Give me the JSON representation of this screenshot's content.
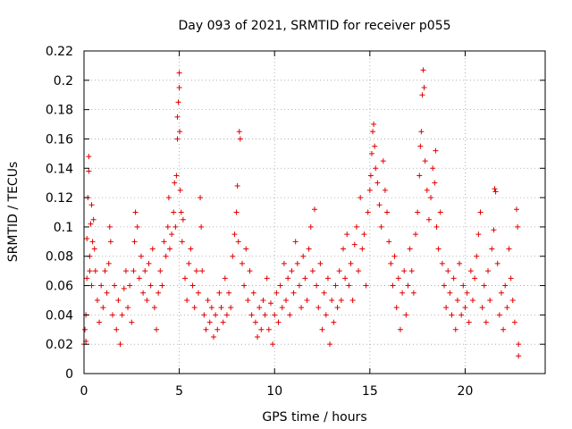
{
  "chart_data": {
    "type": "scatter",
    "title": "Day 093 of 2021, SRMTID for receiver p055",
    "xlabel": "GPS time / hours",
    "ylabel": "SRMTID / TECUs",
    "xlim": [
      0,
      24.2
    ],
    "ylim": [
      0,
      0.22
    ],
    "xticks": [
      0,
      5,
      10,
      15,
      20
    ],
    "xtick_labels": [
      "0",
      "5",
      "10",
      "15",
      "20"
    ],
    "yticks": [
      0,
      0.02,
      0.04,
      0.06,
      0.08,
      0.1,
      0.12,
      0.14,
      0.16,
      0.18,
      0.2,
      0.22
    ],
    "ytick_labels": [
      "0",
      "0.02",
      "0.04",
      "0.06",
      "0.08",
      "0.1",
      "0.12",
      "0.14",
      "0.16",
      "0.18",
      "0.2",
      "0.22"
    ],
    "grid": true,
    "marker": "+",
    "color": "#e00000",
    "series": [
      {
        "name": "p055",
        "points": [
          [
            0.0,
            0.02
          ],
          [
            0.05,
            0.03
          ],
          [
            0.1,
            0.04
          ],
          [
            0.1,
            0.022
          ],
          [
            0.15,
            0.065
          ],
          [
            0.15,
            0.092
          ],
          [
            0.2,
            0.12
          ],
          [
            0.25,
            0.148
          ],
          [
            0.25,
            0.138
          ],
          [
            0.3,
            0.08
          ],
          [
            0.3,
            0.07
          ],
          [
            0.35,
            0.102
          ],
          [
            0.4,
            0.115
          ],
          [
            0.4,
            0.06
          ],
          [
            0.45,
            0.09
          ],
          [
            0.5,
            0.105
          ],
          [
            0.55,
            0.085
          ],
          [
            0.6,
            0.07
          ],
          [
            0.7,
            0.05
          ],
          [
            0.8,
            0.035
          ],
          [
            0.9,
            0.06
          ],
          [
            1.0,
            0.045
          ],
          [
            1.1,
            0.07
          ],
          [
            1.2,
            0.055
          ],
          [
            1.3,
            0.075
          ],
          [
            1.35,
            0.1
          ],
          [
            1.4,
            0.09
          ],
          [
            1.5,
            0.04
          ],
          [
            1.6,
            0.06
          ],
          [
            1.7,
            0.03
          ],
          [
            1.8,
            0.05
          ],
          [
            1.9,
            0.02
          ],
          [
            2.0,
            0.04
          ],
          [
            2.1,
            0.058
          ],
          [
            2.2,
            0.07
          ],
          [
            2.3,
            0.045
          ],
          [
            2.4,
            0.06
          ],
          [
            2.5,
            0.035
          ],
          [
            2.6,
            0.07
          ],
          [
            2.65,
            0.09
          ],
          [
            2.7,
            0.11
          ],
          [
            2.8,
            0.1
          ],
          [
            2.9,
            0.065
          ],
          [
            3.0,
            0.08
          ],
          [
            3.1,
            0.055
          ],
          [
            3.2,
            0.07
          ],
          [
            3.3,
            0.05
          ],
          [
            3.4,
            0.075
          ],
          [
            3.5,
            0.06
          ],
          [
            3.6,
            0.085
          ],
          [
            3.7,
            0.045
          ],
          [
            3.8,
            0.03
          ],
          [
            3.9,
            0.055
          ],
          [
            4.0,
            0.07
          ],
          [
            4.1,
            0.06
          ],
          [
            4.2,
            0.09
          ],
          [
            4.3,
            0.08
          ],
          [
            4.4,
            0.1
          ],
          [
            4.45,
            0.12
          ],
          [
            4.5,
            0.085
          ],
          [
            4.6,
            0.095
          ],
          [
            4.7,
            0.11
          ],
          [
            4.75,
            0.13
          ],
          [
            4.8,
            0.1
          ],
          [
            4.85,
            0.135
          ],
          [
            4.9,
            0.16
          ],
          [
            4.9,
            0.175
          ],
          [
            4.95,
            0.185
          ],
          [
            5.0,
            0.205
          ],
          [
            5.0,
            0.195
          ],
          [
            5.02,
            0.165
          ],
          [
            5.05,
            0.125
          ],
          [
            5.1,
            0.11
          ],
          [
            5.15,
            0.09
          ],
          [
            5.2,
            0.105
          ],
          [
            5.3,
            0.065
          ],
          [
            5.4,
            0.05
          ],
          [
            5.5,
            0.075
          ],
          [
            5.6,
            0.085
          ],
          [
            5.7,
            0.06
          ],
          [
            5.8,
            0.045
          ],
          [
            5.9,
            0.07
          ],
          [
            6.0,
            0.055
          ],
          [
            6.1,
            0.12
          ],
          [
            6.15,
            0.1
          ],
          [
            6.2,
            0.07
          ],
          [
            6.3,
            0.04
          ],
          [
            6.4,
            0.03
          ],
          [
            6.5,
            0.05
          ],
          [
            6.6,
            0.035
          ],
          [
            6.7,
            0.045
          ],
          [
            6.8,
            0.025
          ],
          [
            6.9,
            0.04
          ],
          [
            7.0,
            0.03
          ],
          [
            7.1,
            0.055
          ],
          [
            7.2,
            0.045
          ],
          [
            7.3,
            0.035
          ],
          [
            7.4,
            0.065
          ],
          [
            7.5,
            0.04
          ],
          [
            7.6,
            0.055
          ],
          [
            7.7,
            0.045
          ],
          [
            7.8,
            0.08
          ],
          [
            7.9,
            0.095
          ],
          [
            8.0,
            0.11
          ],
          [
            8.05,
            0.128
          ],
          [
            8.1,
            0.09
          ],
          [
            8.15,
            0.165
          ],
          [
            8.2,
            0.16
          ],
          [
            8.3,
            0.075
          ],
          [
            8.4,
            0.06
          ],
          [
            8.5,
            0.085
          ],
          [
            8.6,
            0.05
          ],
          [
            8.7,
            0.07
          ],
          [
            8.8,
            0.04
          ],
          [
            8.9,
            0.055
          ],
          [
            9.0,
            0.035
          ],
          [
            9.1,
            0.025
          ],
          [
            9.2,
            0.045
          ],
          [
            9.3,
            0.03
          ],
          [
            9.4,
            0.05
          ],
          [
            9.5,
            0.04
          ],
          [
            9.6,
            0.065
          ],
          [
            9.7,
            0.03
          ],
          [
            9.8,
            0.048
          ],
          [
            9.9,
            0.02
          ],
          [
            10.0,
            0.04
          ],
          [
            10.1,
            0.055
          ],
          [
            10.2,
            0.035
          ],
          [
            10.3,
            0.06
          ],
          [
            10.4,
            0.045
          ],
          [
            10.5,
            0.075
          ],
          [
            10.6,
            0.05
          ],
          [
            10.7,
            0.065
          ],
          [
            10.8,
            0.04
          ],
          [
            10.9,
            0.07
          ],
          [
            11.0,
            0.055
          ],
          [
            11.1,
            0.09
          ],
          [
            11.2,
            0.075
          ],
          [
            11.3,
            0.06
          ],
          [
            11.4,
            0.045
          ],
          [
            11.5,
            0.08
          ],
          [
            11.6,
            0.065
          ],
          [
            11.7,
            0.05
          ],
          [
            11.8,
            0.085
          ],
          [
            11.9,
            0.1
          ],
          [
            12.0,
            0.07
          ],
          [
            12.1,
            0.112
          ],
          [
            12.2,
            0.06
          ],
          [
            12.3,
            0.045
          ],
          [
            12.4,
            0.075
          ],
          [
            12.5,
            0.03
          ],
          [
            12.6,
            0.055
          ],
          [
            12.7,
            0.04
          ],
          [
            12.8,
            0.065
          ],
          [
            12.9,
            0.02
          ],
          [
            13.0,
            0.05
          ],
          [
            13.1,
            0.035
          ],
          [
            13.2,
            0.06
          ],
          [
            13.3,
            0.045
          ],
          [
            13.4,
            0.07
          ],
          [
            13.5,
            0.05
          ],
          [
            13.6,
            0.085
          ],
          [
            13.7,
            0.065
          ],
          [
            13.8,
            0.095
          ],
          [
            13.9,
            0.06
          ],
          [
            14.0,
            0.075
          ],
          [
            14.1,
            0.05
          ],
          [
            14.2,
            0.088
          ],
          [
            14.3,
            0.1
          ],
          [
            14.4,
            0.07
          ],
          [
            14.5,
            0.12
          ],
          [
            14.6,
            0.085
          ],
          [
            14.7,
            0.095
          ],
          [
            14.8,
            0.06
          ],
          [
            14.9,
            0.11
          ],
          [
            15.0,
            0.125
          ],
          [
            15.05,
            0.135
          ],
          [
            15.1,
            0.15
          ],
          [
            15.15,
            0.165
          ],
          [
            15.2,
            0.17
          ],
          [
            15.25,
            0.155
          ],
          [
            15.3,
            0.14
          ],
          [
            15.4,
            0.13
          ],
          [
            15.5,
            0.115
          ],
          [
            15.6,
            0.1
          ],
          [
            15.7,
            0.145
          ],
          [
            15.8,
            0.125
          ],
          [
            15.9,
            0.11
          ],
          [
            16.0,
            0.09
          ],
          [
            16.1,
            0.075
          ],
          [
            16.2,
            0.06
          ],
          [
            16.3,
            0.08
          ],
          [
            16.4,
            0.045
          ],
          [
            16.5,
            0.065
          ],
          [
            16.6,
            0.03
          ],
          [
            16.7,
            0.055
          ],
          [
            16.8,
            0.07
          ],
          [
            16.9,
            0.04
          ],
          [
            17.0,
            0.06
          ],
          [
            17.1,
            0.085
          ],
          [
            17.2,
            0.07
          ],
          [
            17.3,
            0.055
          ],
          [
            17.4,
            0.095
          ],
          [
            17.5,
            0.11
          ],
          [
            17.6,
            0.135
          ],
          [
            17.65,
            0.155
          ],
          [
            17.7,
            0.165
          ],
          [
            17.75,
            0.19
          ],
          [
            17.8,
            0.207
          ],
          [
            17.85,
            0.195
          ],
          [
            17.9,
            0.145
          ],
          [
            18.0,
            0.125
          ],
          [
            18.1,
            0.105
          ],
          [
            18.2,
            0.12
          ],
          [
            18.3,
            0.14
          ],
          [
            18.4,
            0.13
          ],
          [
            18.45,
            0.152
          ],
          [
            18.5,
            0.1
          ],
          [
            18.6,
            0.085
          ],
          [
            18.7,
            0.11
          ],
          [
            18.8,
            0.075
          ],
          [
            18.9,
            0.06
          ],
          [
            19.0,
            0.045
          ],
          [
            19.1,
            0.07
          ],
          [
            19.2,
            0.055
          ],
          [
            19.3,
            0.04
          ],
          [
            19.4,
            0.065
          ],
          [
            19.5,
            0.03
          ],
          [
            19.6,
            0.05
          ],
          [
            19.7,
            0.075
          ],
          [
            19.8,
            0.04
          ],
          [
            19.9,
            0.06
          ],
          [
            20.0,
            0.045
          ],
          [
            20.1,
            0.055
          ],
          [
            20.2,
            0.035
          ],
          [
            20.3,
            0.07
          ],
          [
            20.4,
            0.05
          ],
          [
            20.5,
            0.065
          ],
          [
            20.6,
            0.08
          ],
          [
            20.7,
            0.095
          ],
          [
            20.8,
            0.11
          ],
          [
            20.9,
            0.045
          ],
          [
            21.0,
            0.06
          ],
          [
            21.1,
            0.035
          ],
          [
            21.2,
            0.07
          ],
          [
            21.3,
            0.05
          ],
          [
            21.4,
            0.085
          ],
          [
            21.5,
            0.098
          ],
          [
            21.55,
            0.126
          ],
          [
            21.6,
            0.124
          ],
          [
            21.7,
            0.075
          ],
          [
            21.8,
            0.04
          ],
          [
            21.9,
            0.055
          ],
          [
            22.0,
            0.03
          ],
          [
            22.1,
            0.06
          ],
          [
            22.2,
            0.045
          ],
          [
            22.3,
            0.085
          ],
          [
            22.4,
            0.065
          ],
          [
            22.5,
            0.05
          ],
          [
            22.6,
            0.035
          ],
          [
            22.7,
            0.112
          ],
          [
            22.75,
            0.1
          ],
          [
            22.8,
            0.02
          ],
          [
            22.8,
            0.012
          ]
        ]
      }
    ]
  }
}
